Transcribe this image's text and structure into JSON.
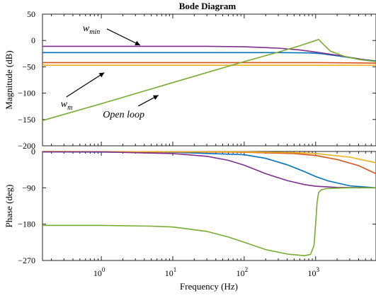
{
  "chart_data": {
    "type": "line",
    "title": "Bode Diagram",
    "xlabel": "Frequency  (Hz)",
    "x_scale": "log",
    "xlim": [
      0.15,
      7000
    ],
    "x_ticks": [
      {
        "value": 1,
        "base": "10",
        "exp": "0"
      },
      {
        "value": 10,
        "base": "10",
        "exp": "1"
      },
      {
        "value": 100,
        "base": "10",
        "exp": "2"
      },
      {
        "value": 1000,
        "base": "10",
        "exp": "3"
      }
    ],
    "grid": false,
    "panels": [
      {
        "name": "magnitude",
        "ylabel": "Magnitude (dB)",
        "ylim": [
          -200,
          50
        ],
        "y_ticks": [
          50,
          0,
          -50,
          -100,
          -150,
          -200
        ],
        "series": [
          {
            "color": "#0072BD",
            "x": [
              0.15,
              1,
              10,
              100,
              300,
              800,
              1200,
              2000,
              4000,
              7000
            ],
            "y": [
              -23,
              -23,
              -23,
              -23,
              -23,
              -23.5,
              -25,
              -29,
              -35,
              -39
            ]
          },
          {
            "color": "#D95319",
            "x": [
              0.15,
              100,
              1000,
              3000,
              7000
            ],
            "y": [
              -42,
              -42,
              -42,
              -42.5,
              -43
            ]
          },
          {
            "color": "#EDB120",
            "x": [
              0.15,
              100,
              1000,
              3000,
              7000
            ],
            "y": [
              -47,
              -47,
              -47,
              -47,
              -47
            ]
          },
          {
            "color": "#7E2F8E",
            "x": [
              0.15,
              1,
              10,
              30,
              100,
              300,
              600,
              1000,
              2000,
              4000,
              7000
            ],
            "y": [
              -11,
              -11,
              -11,
              -11,
              -12,
              -14.5,
              -18,
              -22,
              -28,
              -35,
              -40
            ]
          },
          {
            "color": "#77AC30",
            "x": [
              0.15,
              1,
              10,
              100,
              300,
              600,
              900,
              1100,
              1300,
              1600,
              2500,
              4000,
              7000
            ],
            "y": [
              -152,
              -120,
              -80,
              -40,
              -22,
              -10,
              -2,
              2,
              -8,
              -20,
              -30,
              -36,
              -40
            ]
          }
        ]
      },
      {
        "name": "phase",
        "ylabel": "Phase (deg)",
        "ylim": [
          -270,
          0
        ],
        "y_ticks": [
          0,
          -90,
          -180,
          -270
        ],
        "series": [
          {
            "color": "#0072BD",
            "x": [
              0.15,
              10,
              100,
              200,
              400,
              700,
              1000,
              1500,
              3000,
              7000
            ],
            "y": [
              -1,
              -2,
              -8,
              -17,
              -33,
              -50,
              -62,
              -73,
              -85,
              -90
            ]
          },
          {
            "color": "#D95319",
            "x": [
              0.15,
              100,
              500,
              1000,
              2000,
              4000,
              7000
            ],
            "y": [
              0,
              -2,
              -5,
              -10,
              -20,
              -35,
              -55
            ]
          },
          {
            "color": "#EDB120",
            "x": [
              0.15,
              100,
              500,
              1000,
              3000,
              7000
            ],
            "y": [
              0,
              -1,
              -3,
              -5,
              -14,
              -28
            ]
          },
          {
            "color": "#7E2F8E",
            "x": [
              0.15,
              1,
              10,
              30,
              60,
              100,
              200,
              400,
              700,
              1000,
              2000,
              7000
            ],
            "y": [
              -1,
              -1,
              -5,
              -12,
              -22,
              -34,
              -55,
              -72,
              -82,
              -86,
              -89,
              -90
            ]
          },
          {
            "color": "#77AC30",
            "x": [
              0.15,
              1,
              5,
              10,
              30,
              60,
              100,
              200,
              400,
              700,
              850,
              950,
              1000,
              1050,
              1100,
              1200,
              1400,
              1800,
              3000,
              7000
            ],
            "y": [
              -183,
              -183,
              -185,
              -187,
              -198,
              -212,
              -225,
              -243,
              -254,
              -258,
              -255,
              -232,
              -180,
              -125,
              -102,
              -95,
              -92,
              -91,
              -90,
              -90
            ]
          }
        ]
      }
    ],
    "annotations": [
      {
        "panel": "magnitude",
        "base": "w",
        "sub": "min",
        "x": 0.55,
        "y": 18,
        "arrow_to": [
          3.5,
          -9
        ]
      },
      {
        "panel": "magnitude",
        "base": "w",
        "sub": "m",
        "x": 0.27,
        "y": -126,
        "arrow_to": [
          1.1,
          -61
        ]
      },
      {
        "panel": "magnitude",
        "base": "Open loop",
        "sub": "",
        "x": 1.05,
        "y": -146,
        "arrow_to": [
          6.3,
          -104
        ]
      }
    ]
  }
}
